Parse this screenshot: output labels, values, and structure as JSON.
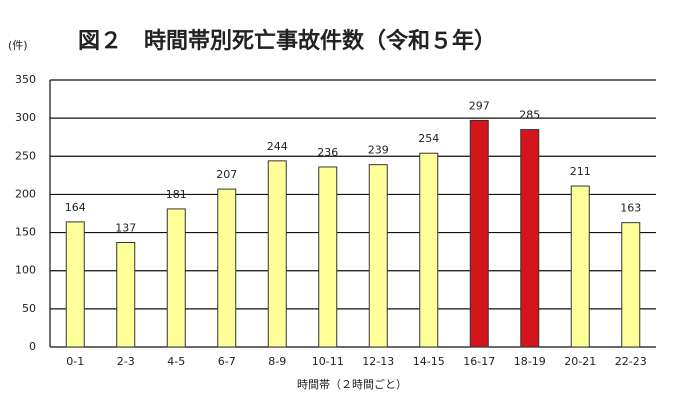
{
  "chart_data": {
    "type": "bar",
    "title": "図２　時間帯別死亡事故件数（令和５年）",
    "y_label": "(件)",
    "x_label": "時間帯（２時間ごと）",
    "categories": [
      "0-1",
      "2-3",
      "4-5",
      "6-7",
      "8-9",
      "10-11",
      "12-13",
      "14-15",
      "16-17",
      "18-19",
      "20-21",
      "22-23"
    ],
    "values": [
      164,
      137,
      181,
      207,
      244,
      236,
      239,
      254,
      297,
      285,
      211,
      163
    ],
    "colors": [
      "#ffff99",
      "#ffff99",
      "#ffff99",
      "#ffff99",
      "#ffff99",
      "#ffff99",
      "#ffff99",
      "#ffff99",
      "#d4161c",
      "#d4161c",
      "#ffff99",
      "#ffff99"
    ],
    "ylim": [
      0,
      350
    ],
    "yticks": [
      0,
      50,
      100,
      150,
      200,
      250,
      300,
      350
    ],
    "grid": true
  }
}
